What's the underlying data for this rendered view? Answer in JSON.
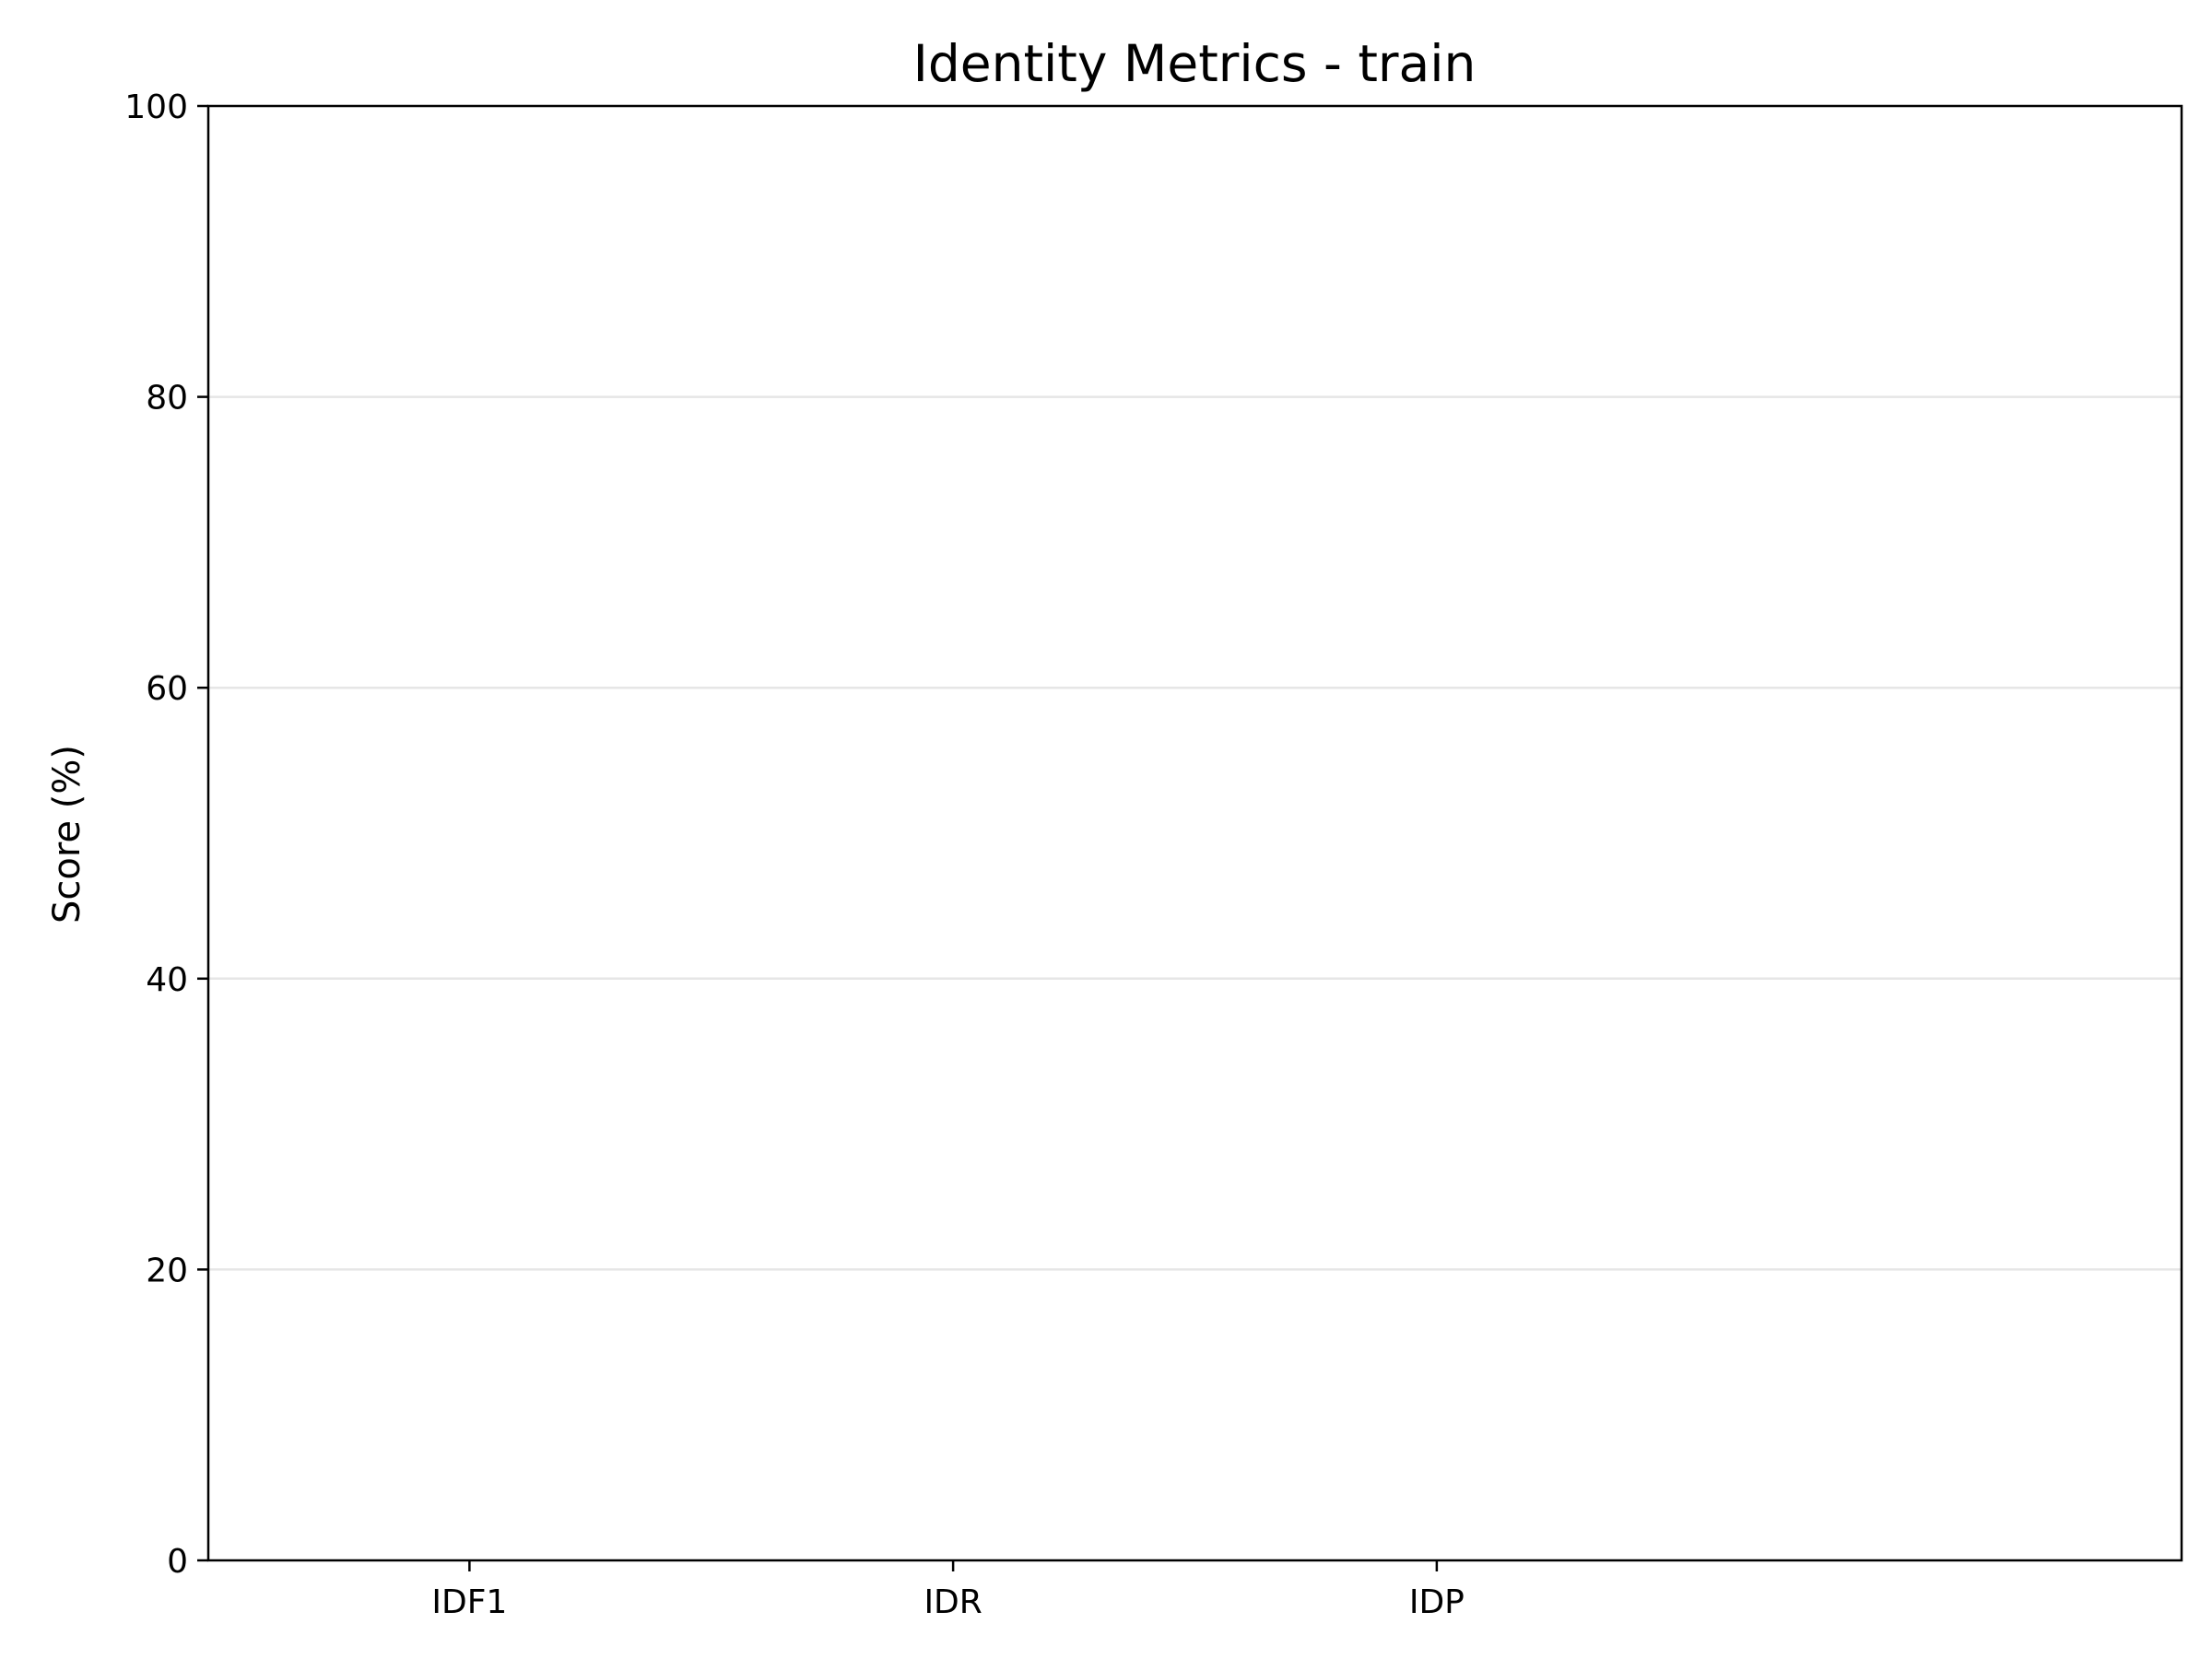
{
  "chart_data": {
    "type": "bar",
    "title": "Identity Metrics - train",
    "xlabel": "",
    "ylabel": "Score (%)",
    "categories": [
      "IDF1",
      "IDR",
      "IDP"
    ],
    "values": [
      0,
      0,
      0
    ],
    "ylim": [
      0,
      100
    ],
    "yticks": [
      0,
      20,
      40,
      60,
      80,
      100
    ],
    "grid": "y",
    "bar_color": "#4c72b0",
    "value_labels": [
      "",
      "",
      ""
    ]
  }
}
